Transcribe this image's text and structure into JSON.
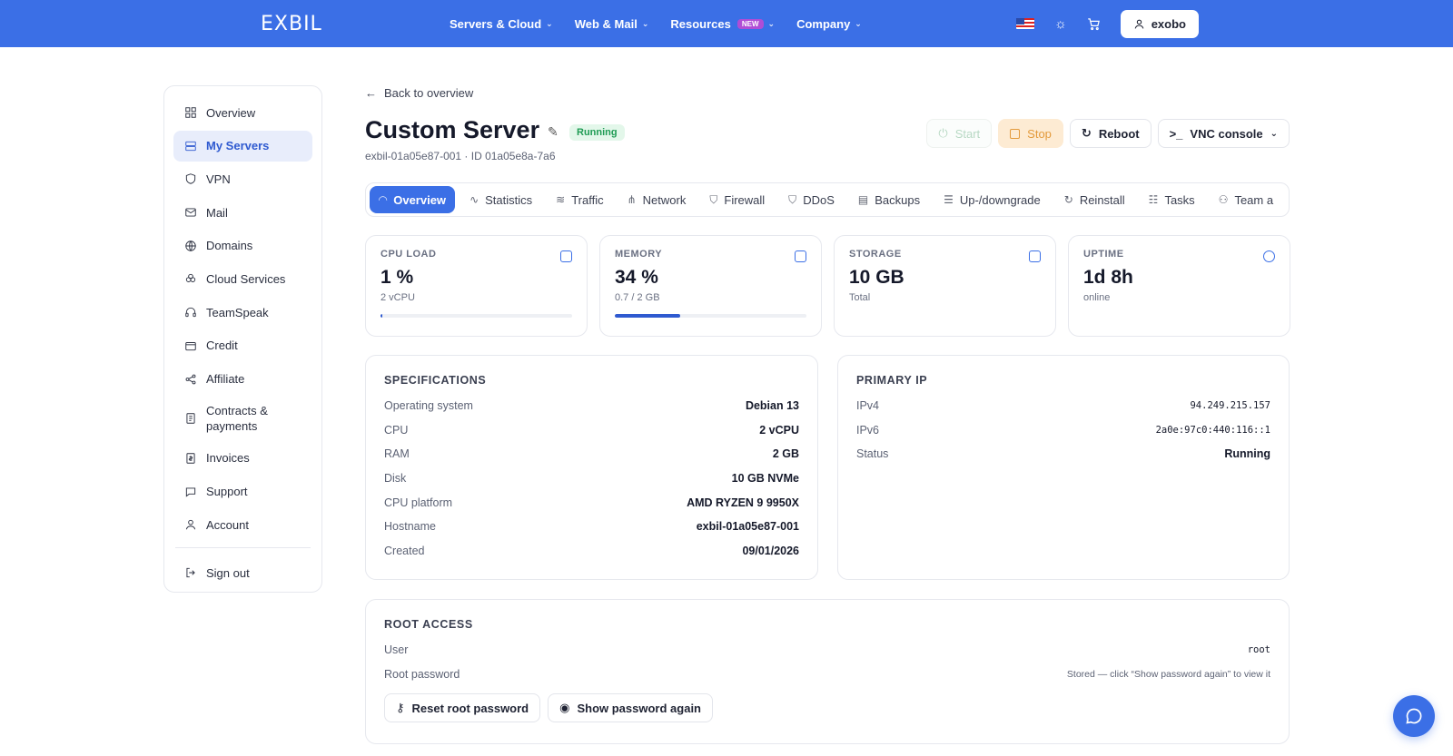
{
  "nav": {
    "logo": "EXBIL",
    "links": [
      {
        "label": "Servers & Cloud"
      },
      {
        "label": "Web & Mail"
      },
      {
        "label": "Resources",
        "badge": "NEW"
      },
      {
        "label": "Company"
      }
    ],
    "user": "exobo"
  },
  "sidebar": {
    "items": [
      {
        "label": "Overview",
        "icon": "grid-icon"
      },
      {
        "label": "My Servers",
        "icon": "server-icon",
        "active": true
      },
      {
        "label": "VPN",
        "icon": "shield-icon"
      },
      {
        "label": "Mail",
        "icon": "mail-icon"
      },
      {
        "label": "Domains",
        "icon": "globe-icon"
      },
      {
        "label": "Cloud Services",
        "icon": "cloud-icon"
      },
      {
        "label": "TeamSpeak",
        "icon": "headset-icon"
      },
      {
        "label": "Credit",
        "icon": "wallet-icon"
      },
      {
        "label": "Affiliate",
        "icon": "share-icon"
      },
      {
        "label": "Contracts & payments",
        "icon": "contract-icon"
      },
      {
        "label": "Invoices",
        "icon": "invoice-icon"
      },
      {
        "label": "Support",
        "icon": "chat-icon"
      },
      {
        "label": "Account",
        "icon": "user-icon"
      }
    ],
    "signout": "Sign out"
  },
  "header": {
    "back": "Back to overview",
    "title": "Custom Server",
    "status": "Running",
    "subline": "exbil-01a05e87-001 · ID 01a05e8a-7a6"
  },
  "actions": {
    "start": "Start",
    "stop": "Stop",
    "reboot": "Reboot",
    "vnc": "VNC console"
  },
  "tabs": [
    "Overview",
    "Statistics",
    "Traffic",
    "Network",
    "Firewall",
    "DDoS",
    "Backups",
    "Up-/downgrade",
    "Reinstall",
    "Tasks",
    "Team a"
  ],
  "stats": {
    "cpu": {
      "label": "CPU LOAD",
      "value": "1 %",
      "sub": "2 vCPU",
      "percent": 1
    },
    "memory": {
      "label": "MEMORY",
      "value": "34 %",
      "sub": "0.7 / 2 GB",
      "percent": 34
    },
    "storage": {
      "label": "STORAGE",
      "value": "10 GB",
      "sub": "Total"
    },
    "uptime": {
      "label": "UPTIME",
      "value": "1d 8h",
      "sub": "online"
    }
  },
  "specs": {
    "title": "SPECIFICATIONS",
    "rows": [
      {
        "k": "Operating system",
        "v": "Debian 13"
      },
      {
        "k": "CPU",
        "v": "2 vCPU"
      },
      {
        "k": "RAM",
        "v": "2 GB"
      },
      {
        "k": "Disk",
        "v": "10 GB NVMe"
      },
      {
        "k": "CPU platform",
        "v": "AMD RYZEN 9 9950X"
      },
      {
        "k": "Hostname",
        "v": "exbil-01a05e87-001"
      },
      {
        "k": "Created",
        "v": "09/01/2026"
      }
    ]
  },
  "ip": {
    "title": "PRIMARY IP",
    "rows": [
      {
        "k": "IPv4",
        "v": "94.249.215.157"
      },
      {
        "k": "IPv6",
        "v": "2a0e:97c0:440:116::1"
      },
      {
        "k": "Status",
        "v": "Running"
      }
    ]
  },
  "root": {
    "title": "ROOT ACCESS",
    "user_label": "User",
    "user_value": "root",
    "pw_label": "Root password",
    "pw_value": "Stored — click “Show password again” to view it",
    "reset_btn": "Reset root password",
    "show_btn": "Show password again"
  },
  "colors": {
    "accent": "#3b6fe6",
    "running": "#1e9b53",
    "stop": "#e39a3b"
  }
}
